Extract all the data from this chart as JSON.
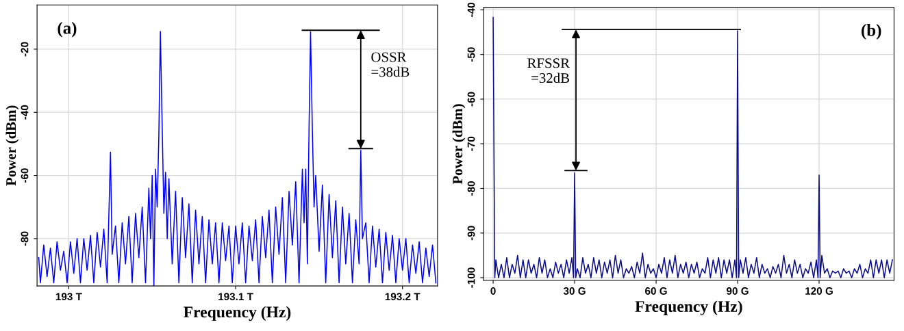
{
  "chart_data": [
    {
      "type": "line",
      "xlabel": "Frequency (Hz)",
      "ylabel": "Power (dBm)",
      "annotations": [
        "(a)",
        "OSSR\n=38dB"
      ],
      "xlim": [
        192.981,
        193.221
      ],
      "ylim": [
        -95,
        -6
      ],
      "xticks": [
        {
          "value": 193,
          "label": "193 T"
        },
        {
          "value": 193.1,
          "label": "193.1 T"
        },
        {
          "value": 193.2,
          "label": "193.2 T"
        }
      ],
      "yticks": [
        -20,
        -40,
        -60,
        -80
      ],
      "grid": true,
      "series": [
        {
          "color": "#0000ff",
          "x": [
            192.982,
            192.983,
            192.985,
            192.987,
            192.989,
            192.991,
            192.993,
            192.995,
            192.997,
            192.999,
            193.001,
            193.003,
            193.005,
            193.007,
            193.009,
            193.011,
            193.013,
            193.015,
            193.017,
            193.019,
            193.021,
            193.023,
            193.025,
            193.026,
            193.028,
            193.03,
            193.032,
            193.034,
            193.036,
            193.038,
            193.04,
            193.042,
            193.044,
            193.046,
            193.048,
            193.049,
            193.05,
            193.051,
            193.052,
            193.053,
            193.054,
            193.0549,
            193.056,
            193.057,
            193.058,
            193.059,
            193.06,
            193.062,
            193.064,
            193.066,
            193.068,
            193.07,
            193.072,
            193.074,
            193.076,
            193.078,
            193.08,
            193.082,
            193.084,
            193.086,
            193.088,
            193.09,
            193.092,
            193.094,
            193.096,
            193.098,
            193.1,
            193.102,
            193.104,
            193.106,
            193.108,
            193.11,
            193.112,
            193.114,
            193.116,
            193.118,
            193.12,
            193.122,
            193.124,
            193.126,
            193.128,
            193.13,
            193.132,
            193.134,
            193.136,
            193.138,
            193.14,
            193.141,
            193.142,
            193.143,
            193.144,
            193.1449,
            193.146,
            193.147,
            193.148,
            193.15,
            193.152,
            193.154,
            193.156,
            193.158,
            193.16,
            193.162,
            193.164,
            193.166,
            193.168,
            193.17,
            193.172,
            193.174,
            193.175,
            193.176,
            193.178,
            193.18,
            193.182,
            193.184,
            193.186,
            193.188,
            193.19,
            193.192,
            193.194,
            193.196,
            193.198,
            193.2,
            193.202,
            193.204,
            193.206,
            193.208,
            193.21,
            193.212,
            193.214,
            193.216,
            193.218,
            193.22
          ],
          "values": [
            -86,
            -94,
            -82,
            -92,
            -83,
            -94,
            -81,
            -90,
            -84,
            -94,
            -81,
            -91,
            -80,
            -94,
            -80,
            -90,
            -79,
            -94,
            -78,
            -89,
            -77,
            -94,
            -52.6,
            -85,
            -76,
            -94,
            -75,
            -88,
            -73,
            -94,
            -72,
            -86,
            -70,
            -94,
            -64,
            -80,
            -60,
            -95,
            -58,
            -70,
            -47,
            -14.4,
            -45,
            -72,
            -59,
            -80,
            -61,
            -88,
            -65,
            -94,
            -67,
            -86,
            -69,
            -94,
            -71,
            -88,
            -73,
            -94,
            -74,
            -88,
            -75,
            -94,
            -75,
            -87,
            -76,
            -94,
            -76,
            -88,
            -75,
            -94,
            -76,
            -87,
            -74,
            -94,
            -73,
            -86,
            -71,
            -94,
            -70,
            -85,
            -67,
            -94,
            -65,
            -82,
            -62,
            -94,
            -58,
            -75,
            -58,
            -88,
            -45,
            -14.5,
            -46,
            -70,
            -60,
            -84,
            -63,
            -94,
            -66,
            -86,
            -68,
            -94,
            -70,
            -88,
            -72,
            -94,
            -74,
            -88,
            -52,
            -80,
            -75,
            -94,
            -76,
            -89,
            -77,
            -94,
            -78,
            -90,
            -79,
            -94,
            -80,
            -90,
            -80,
            -94,
            -82,
            -91,
            -81,
            -94,
            -83,
            -92,
            -82,
            -94
          ]
        },
        {
          "color": "#000000",
          "x": [
            193.14,
            193.186
          ],
          "values": [
            -14,
            -14
          ]
        },
        {
          "color": "#000000",
          "x": [
            193.168,
            193.182
          ],
          "values": [
            -51.5,
            -51.5
          ]
        }
      ]
    },
    {
      "type": "line",
      "xlabel": "Frequency (Hz)",
      "ylabel": "Power (dBm)",
      "annotations": [
        "(b)",
        "RFSSR\n=32dB"
      ],
      "xlim": [
        -3.5,
        147.6
      ],
      "ylim": [
        -100.6,
        -39.5
      ],
      "xticks": [
        0,
        {
          "value": 30,
          "label": "30 G"
        },
        {
          "value": 60,
          "label": "60 G"
        },
        {
          "value": 90,
          "label": "90 G"
        },
        {
          "value": 120,
          "label": "120 G"
        }
      ],
      "yticks": [
        -40,
        -50,
        -60,
        -70,
        -80,
        -90,
        -100
      ],
      "grid": true,
      "series": [
        {
          "color": "#0a0a8c",
          "x": [
            0,
            0.6,
            1,
            2,
            3,
            4,
            5,
            6,
            7,
            8,
            9,
            10,
            11,
            12,
            13,
            14,
            15,
            16,
            17,
            18,
            19,
            20,
            21,
            22,
            23,
            24,
            25,
            26,
            27,
            28,
            29,
            29.6,
            30,
            30.4,
            31,
            32,
            33,
            34,
            35,
            36,
            37,
            38,
            39,
            40,
            41,
            42,
            43,
            44,
            45,
            46,
            47,
            48,
            49,
            50,
            51,
            52,
            53,
            54,
            55,
            56,
            57,
            58,
            59,
            60,
            61,
            62,
            63,
            64,
            65,
            66,
            67,
            68,
            69,
            70,
            71,
            72,
            73,
            74,
            75,
            76,
            77,
            78,
            79,
            80,
            81,
            82,
            83,
            84,
            85,
            86,
            87,
            88,
            89,
            89.6,
            90,
            90.4,
            91,
            92,
            93,
            94,
            95,
            96,
            97,
            98,
            99,
            100,
            101,
            102,
            103,
            104,
            105,
            106,
            107,
            108,
            109,
            110,
            111,
            112,
            113,
            114,
            115,
            116,
            117,
            118,
            119,
            119.6,
            120,
            120.4,
            121,
            122,
            123,
            124,
            125,
            126,
            127,
            128,
            129,
            130,
            131,
            132,
            133,
            134,
            135,
            136,
            137,
            138,
            139,
            140,
            141,
            142,
            143,
            144,
            145,
            146,
            147
          ],
          "values": [
            -41.7,
            -100,
            -96,
            -100,
            -97,
            -100,
            -95.5,
            -100,
            -97,
            -99,
            -95,
            -100,
            -96,
            -100,
            -96,
            -99,
            -97,
            -100,
            -95.5,
            -99,
            -96,
            -100,
            -98,
            -100,
            -96.5,
            -99,
            -97,
            -100,
            -96,
            -99,
            -95.5,
            -100,
            -76.5,
            -100,
            -98,
            -100,
            -95.5,
            -99,
            -97,
            -100,
            -95.5,
            -99,
            -96,
            -100,
            -96.5,
            -99,
            -96,
            -100,
            -95,
            -99,
            -96,
            -100,
            -98,
            -99,
            -97.5,
            -100,
            -96.5,
            -99,
            -94.5,
            -100,
            -97,
            -99,
            -98,
            -100,
            -97,
            -99,
            -95.5,
            -100,
            -96,
            -99,
            -95,
            -100,
            -97,
            -99,
            -96.5,
            -100,
            -97,
            -99,
            -96.5,
            -100,
            -98,
            -99,
            -95.5,
            -100,
            -96,
            -99,
            -95.5,
            -100,
            -96,
            -99,
            -96,
            -100,
            -96,
            -100,
            -44.7,
            -100,
            -96,
            -99,
            -95.5,
            -100,
            -97,
            -99,
            -95.5,
            -100,
            -97,
            -99,
            -98,
            -100,
            -97.5,
            -99,
            -97,
            -100,
            -95,
            -99,
            -97,
            -100,
            -96,
            -99,
            -97,
            -100,
            -98,
            -99,
            -96.5,
            -100,
            -96,
            -100,
            -77,
            -100,
            -95,
            -99,
            -98,
            -100,
            -98.5,
            -99,
            -98.5,
            -100,
            -98,
            -99,
            -98.5,
            -100,
            -98,
            -99,
            -97,
            -100,
            -98,
            -99,
            -96,
            -100,
            -96,
            -99,
            -96,
            -100,
            -96,
            -99,
            -96
          ]
        },
        {
          "color": "#000000",
          "x": [
            25.5,
            91
          ],
          "values": [
            -44.4,
            -44.4
          ]
        },
        {
          "color": "#000000",
          "x": [
            26.5,
            34.5
          ],
          "values": [
            -76,
            -76
          ]
        }
      ]
    }
  ]
}
